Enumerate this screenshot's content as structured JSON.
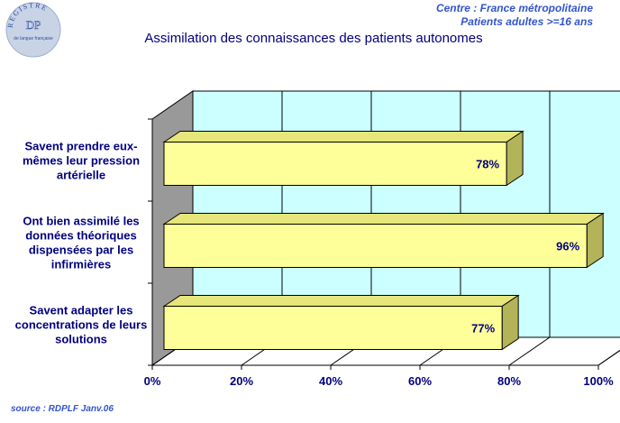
{
  "header": {
    "line1": "Centre : France métropolitaine",
    "line2": "Patients adultes >=16 ans"
  },
  "logo": {
    "ring_text": "REGISTRE",
    "center_text": "DP",
    "sub_text": "de langue française"
  },
  "source": "source : RDPLF  Janv.06",
  "colors": {
    "plot_background": "#ccffff",
    "bar_front": "#ffff99",
    "bar_top": "#e6e67a",
    "bar_side": "#b3b35a",
    "wall_left": "#999999",
    "floor": "#ffffff",
    "text": "#000080",
    "header_text": "#3355cc"
  },
  "chart_data": {
    "type": "bar",
    "orientation": "horizontal",
    "style": "3d",
    "title": "Assimilation des connaissances des patients autonomes",
    "categories": [
      [
        "Savent prendre eux-",
        "mêmes leur pression",
        "artérielle"
      ],
      [
        "Ont bien assimilé les",
        "données théoriques",
        "dispensées par les",
        "infirmières"
      ],
      [
        "Savent adapter les",
        "concentrations de leurs",
        "solutions"
      ]
    ],
    "values": [
      78,
      96,
      77
    ],
    "data_labels": [
      "78%",
      "96%",
      "77%"
    ],
    "xlim": [
      0,
      100
    ],
    "ticks": [
      "0%",
      "20%",
      "40%",
      "60%",
      "80%",
      "100%"
    ],
    "grid": true
  }
}
